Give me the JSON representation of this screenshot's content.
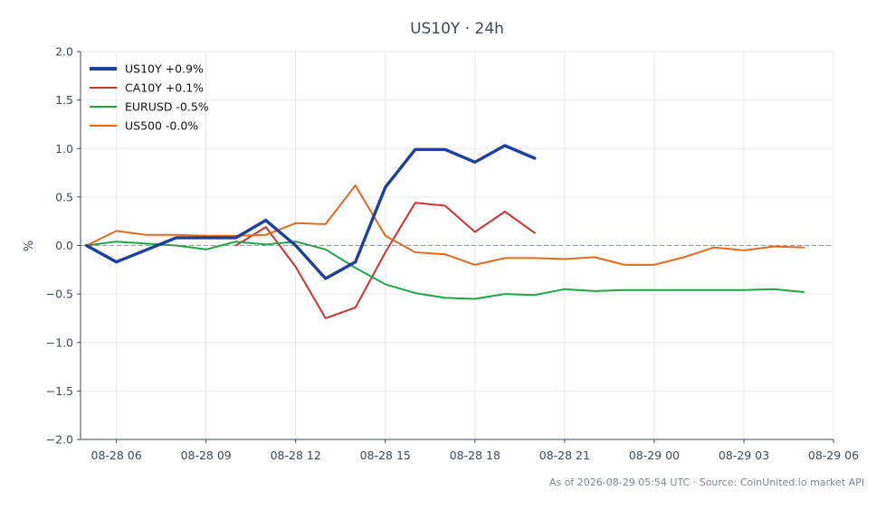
{
  "chart_data": {
    "type": "line",
    "title": "US10Y · 24h",
    "xlabel": "",
    "ylabel": "%",
    "ylim": [
      -2.0,
      2.0
    ],
    "y_ticks": [
      "2.0",
      "1.5",
      "1.0",
      "0.5",
      "0.0",
      "−0.5",
      "−1.0",
      "−1.5",
      "−2.0"
    ],
    "y_tick_values": [
      2.0,
      1.5,
      1.0,
      0.5,
      0.0,
      -0.5,
      -1.0,
      -1.5,
      -2.0
    ],
    "x_range": [
      "2026-08-28 04:48",
      "2026-08-29 06:00"
    ],
    "x_ticks": [
      "08-28 06",
      "08-28 09",
      "08-28 12",
      "08-28 15",
      "08-28 18",
      "08-28 21",
      "08-29 00",
      "08-29 03",
      "08-29 06"
    ],
    "x_tick_times": [
      "2026-08-28 06:00",
      "2026-08-28 09:00",
      "2026-08-28 12:00",
      "2026-08-28 15:00",
      "2026-08-28 18:00",
      "2026-08-28 21:00",
      "2026-08-29 00:00",
      "2026-08-29 03:00",
      "2026-08-29 06:00"
    ],
    "grid": true,
    "zero_line": true,
    "legend_position": "top-left",
    "series": [
      {
        "name": "US10Y +0.9%",
        "color": "#1f3fa0",
        "emphasis": true,
        "points": [
          [
            "2026-08-28 05:00",
            0.0
          ],
          [
            "2026-08-28 06:00",
            -0.17
          ],
          [
            "2026-08-28 08:00",
            0.08
          ],
          [
            "2026-08-28 09:00",
            0.08
          ],
          [
            "2026-08-28 10:00",
            0.08
          ],
          [
            "2026-08-28 11:00",
            0.26
          ],
          [
            "2026-08-28 12:00",
            0.0
          ],
          [
            "2026-08-28 13:00",
            -0.34
          ],
          [
            "2026-08-28 14:00",
            -0.17
          ],
          [
            "2026-08-28 15:00",
            0.6
          ],
          [
            "2026-08-28 16:00",
            0.99
          ],
          [
            "2026-08-28 17:00",
            0.99
          ],
          [
            "2026-08-28 18:00",
            0.86
          ],
          [
            "2026-08-28 19:00",
            1.03
          ],
          [
            "2026-08-28 20:00",
            0.9
          ]
        ]
      },
      {
        "name": "CA10Y +0.1%",
        "color": "#cc3333",
        "emphasis": false,
        "points": [
          [
            "2026-08-28 10:00",
            0.0
          ],
          [
            "2026-08-28 11:00",
            0.19
          ],
          [
            "2026-08-28 12:00",
            -0.22
          ],
          [
            "2026-08-28 13:00",
            -0.75
          ],
          [
            "2026-08-28 14:00",
            -0.64
          ],
          [
            "2026-08-28 15:00",
            -0.07
          ],
          [
            "2026-08-28 16:00",
            0.44
          ],
          [
            "2026-08-28 17:00",
            0.41
          ],
          [
            "2026-08-28 18:00",
            0.14
          ],
          [
            "2026-08-28 19:00",
            0.35
          ],
          [
            "2026-08-28 20:00",
            0.13
          ]
        ]
      },
      {
        "name": "EURUSD -0.5%",
        "color": "#22a34a",
        "emphasis": false,
        "points": [
          [
            "2026-08-28 05:00",
            0.0
          ],
          [
            "2026-08-28 06:00",
            0.04
          ],
          [
            "2026-08-28 07:00",
            0.02
          ],
          [
            "2026-08-28 08:00",
            0.0
          ],
          [
            "2026-08-28 09:00",
            -0.04
          ],
          [
            "2026-08-28 10:00",
            0.04
          ],
          [
            "2026-08-28 11:00",
            0.01
          ],
          [
            "2026-08-28 12:00",
            0.04
          ],
          [
            "2026-08-28 13:00",
            -0.04
          ],
          [
            "2026-08-28 14:00",
            -0.23
          ],
          [
            "2026-08-28 15:00",
            -0.4
          ],
          [
            "2026-08-28 16:00",
            -0.49
          ],
          [
            "2026-08-28 17:00",
            -0.54
          ],
          [
            "2026-08-28 18:00",
            -0.55
          ],
          [
            "2026-08-28 19:00",
            -0.5
          ],
          [
            "2026-08-28 20:00",
            -0.51
          ],
          [
            "2026-08-28 21:00",
            -0.45
          ],
          [
            "2026-08-28 22:00",
            -0.47
          ],
          [
            "2026-08-28 23:00",
            -0.46
          ],
          [
            "2026-08-29 00:00",
            -0.46
          ],
          [
            "2026-08-29 01:00",
            -0.46
          ],
          [
            "2026-08-29 02:00",
            -0.46
          ],
          [
            "2026-08-29 03:00",
            -0.46
          ],
          [
            "2026-08-29 04:00",
            -0.45
          ],
          [
            "2026-08-29 05:00",
            -0.48
          ]
        ]
      },
      {
        "name": "US500 -0.0%",
        "color": "#e06a1f",
        "emphasis": false,
        "points": [
          [
            "2026-08-28 05:00",
            0.0
          ],
          [
            "2026-08-28 06:00",
            0.15
          ],
          [
            "2026-08-28 07:00",
            0.11
          ],
          [
            "2026-08-28 08:00",
            0.11
          ],
          [
            "2026-08-28 09:00",
            0.1
          ],
          [
            "2026-08-28 10:00",
            0.1
          ],
          [
            "2026-08-28 11:00",
            0.11
          ],
          [
            "2026-08-28 12:00",
            0.23
          ],
          [
            "2026-08-28 13:00",
            0.22
          ],
          [
            "2026-08-28 14:00",
            0.62
          ],
          [
            "2026-08-28 15:00",
            0.1
          ],
          [
            "2026-08-28 16:00",
            -0.07
          ],
          [
            "2026-08-28 17:00",
            -0.09
          ],
          [
            "2026-08-28 18:00",
            -0.2
          ],
          [
            "2026-08-28 19:00",
            -0.13
          ],
          [
            "2026-08-28 20:00",
            -0.13
          ],
          [
            "2026-08-28 21:00",
            -0.14
          ],
          [
            "2026-08-28 22:00",
            -0.12
          ],
          [
            "2026-08-28 23:00",
            -0.2
          ],
          [
            "2026-08-29 00:00",
            -0.2
          ],
          [
            "2026-08-29 01:00",
            -0.12
          ],
          [
            "2026-08-29 02:00",
            -0.02
          ],
          [
            "2026-08-29 03:00",
            -0.05
          ],
          [
            "2026-08-29 04:00",
            -0.01
          ],
          [
            "2026-08-29 05:00",
            -0.02
          ]
        ]
      }
    ]
  },
  "footer": {
    "text": "As of 2026-08-29 05:54 UTC · Source: CoinUnited.io market API"
  }
}
